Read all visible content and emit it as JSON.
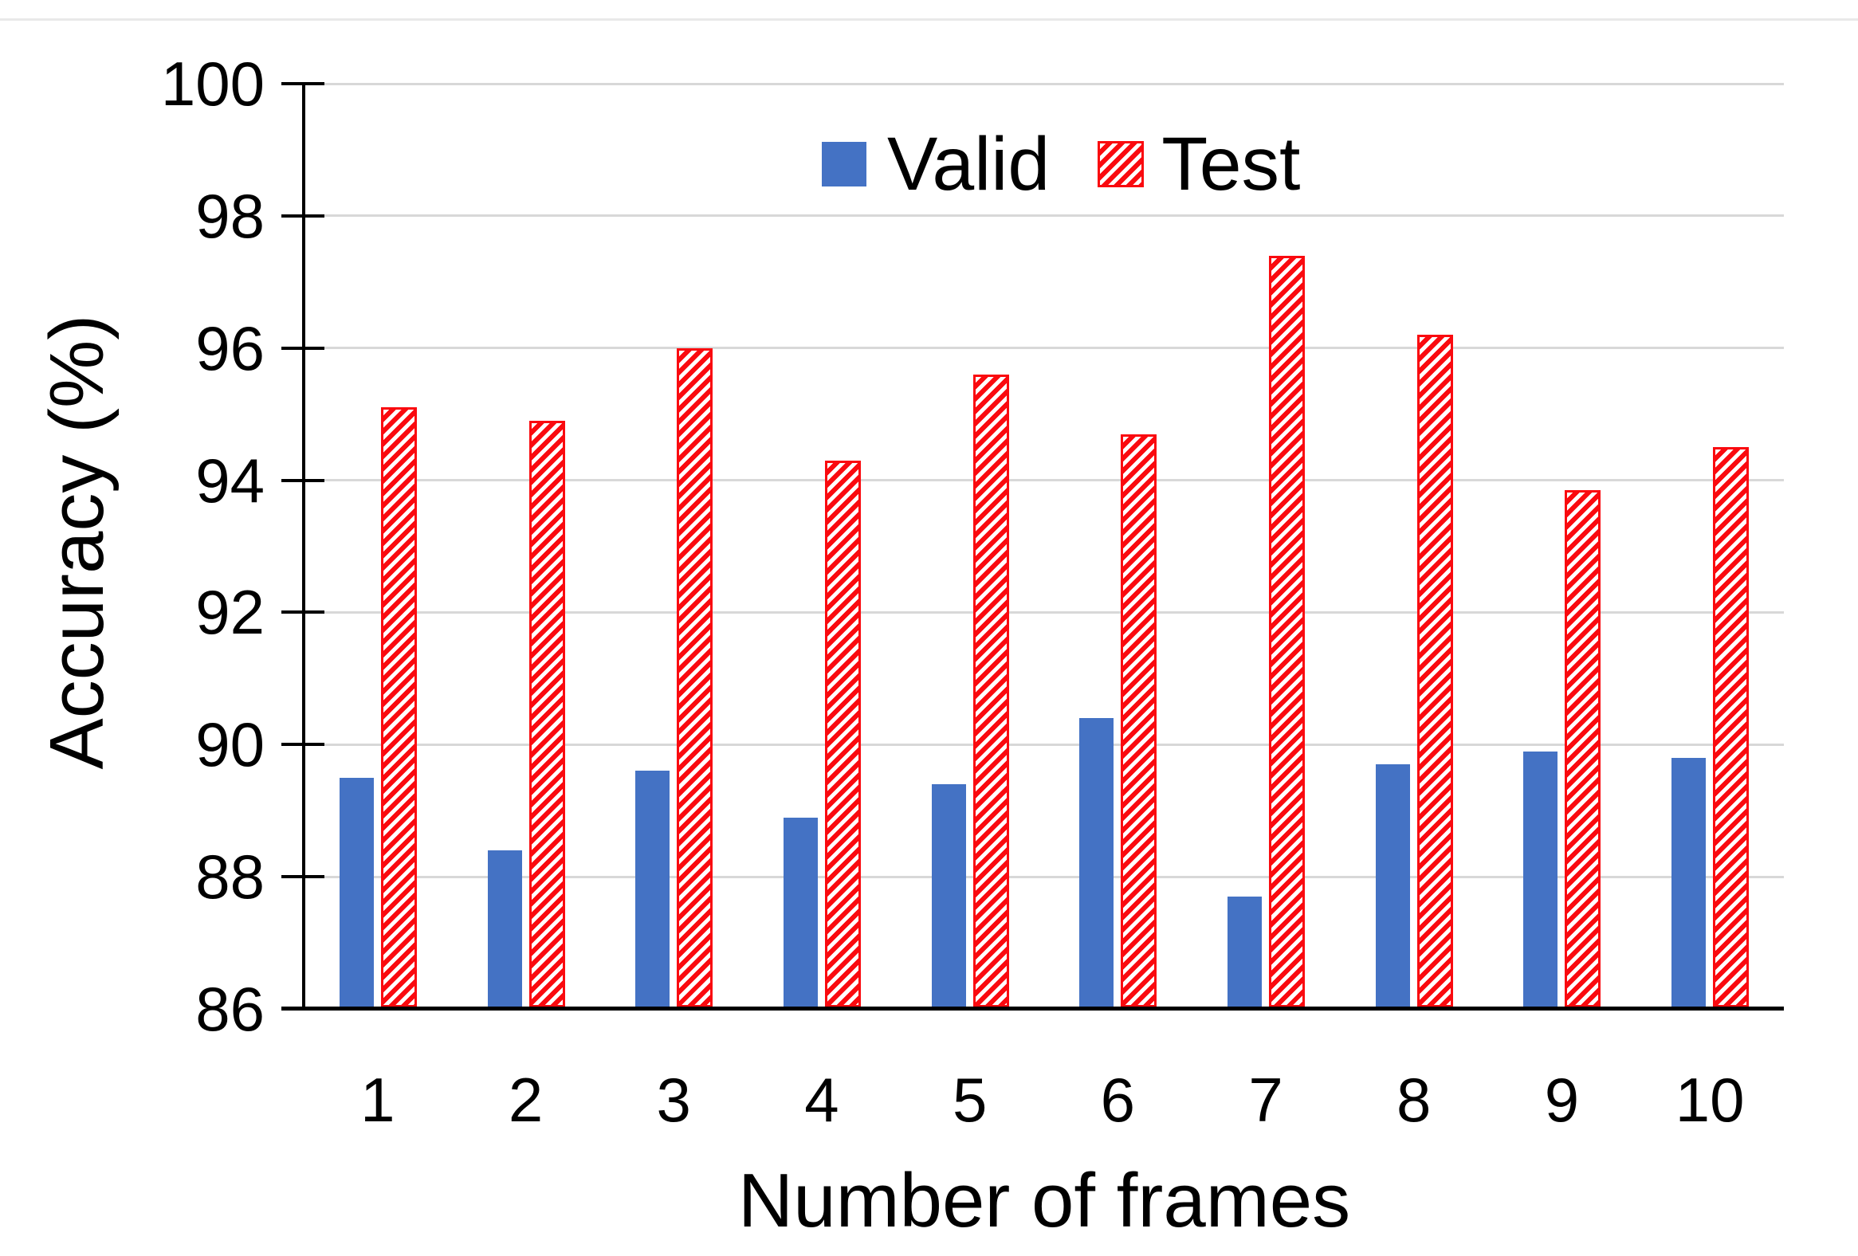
{
  "chart_data": {
    "type": "bar",
    "title": "",
    "xlabel": "Number of frames",
    "ylabel": "Accuracy (%)",
    "categories": [
      "1",
      "2",
      "3",
      "4",
      "5",
      "6",
      "7",
      "8",
      "9",
      "10"
    ],
    "series": [
      {
        "name": "Valid",
        "color": "#4472C4",
        "pattern": "solid",
        "values": [
          89.5,
          88.4,
          89.6,
          88.9,
          89.4,
          90.4,
          87.7,
          89.7,
          89.9,
          89.8
        ]
      },
      {
        "name": "Test",
        "color": "#FA0A0F",
        "pattern": "diagonal-hatch",
        "values": [
          95.1,
          94.9,
          96.0,
          94.3,
          95.6,
          94.7,
          97.4,
          96.2,
          93.85,
          94.5
        ]
      }
    ],
    "ylim": [
      86,
      100
    ],
    "yticks": [
      86,
      88,
      90,
      92,
      94,
      96,
      98,
      100
    ],
    "grid": "horizontal-only",
    "legend_position": "top-center-inside"
  },
  "legend": {
    "valid_label": "Valid",
    "test_label": "Test"
  },
  "colors": {
    "valid_blue": "#4472C4",
    "test_red": "#FA0A0F",
    "gridline_gray": "#D8D8D8",
    "axis_black": "#000000",
    "top_border_gray": "#E9E9E9"
  }
}
